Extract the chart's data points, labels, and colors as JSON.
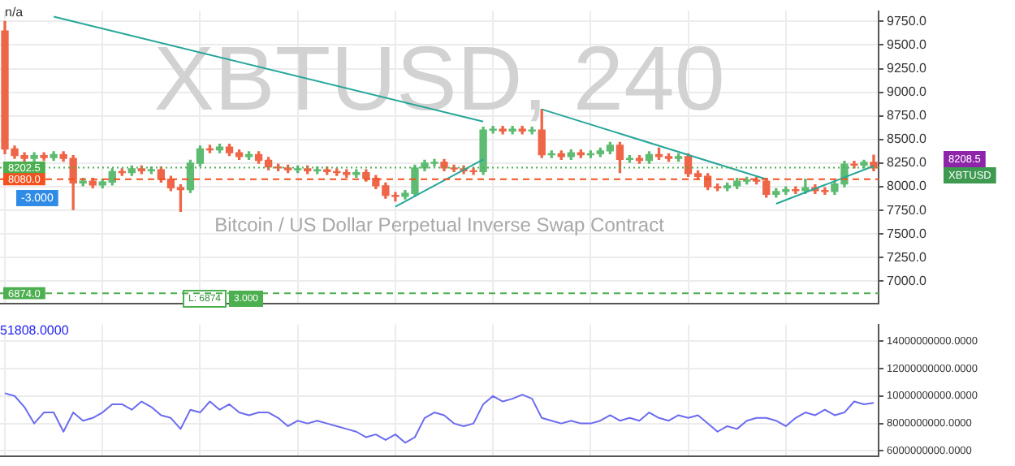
{
  "chart_data": [
    {
      "type": "candlestick",
      "categories": [
        null,
        null,
        null,
        null,
        null,
        null,
        null,
        null,
        null,
        null,
        null,
        null,
        null,
        null,
        null,
        null,
        null,
        null,
        null,
        null,
        null,
        null,
        null,
        null,
        null,
        null,
        null,
        null,
        null,
        null,
        null,
        null,
        null,
        null,
        null,
        null,
        null,
        null,
        null,
        null,
        null,
        null,
        null,
        null,
        null,
        null,
        null,
        null,
        null,
        null,
        null,
        null,
        null,
        null,
        null,
        null,
        null,
        null,
        null,
        null,
        null,
        null,
        null,
        null,
        null,
        null,
        null,
        null,
        null,
        null,
        null,
        null,
        null,
        null,
        null,
        null,
        null,
        null,
        null,
        null,
        null,
        null,
        null,
        null,
        null,
        null,
        null,
        null,
        null,
        null
      ],
      "ohlc": [
        [
          9650,
          9750,
          8350,
          8400
        ],
        [
          8400,
          8430,
          8300,
          8330
        ],
        [
          8330,
          8360,
          8270,
          8300
        ],
        [
          8300,
          8360,
          8270,
          8330
        ],
        [
          8330,
          8360,
          8280,
          8310
        ],
        [
          8310,
          8370,
          8280,
          8340
        ],
        [
          8340,
          8370,
          8270,
          8300
        ],
        [
          8300,
          8330,
          7760,
          8040
        ],
        [
          8040,
          8090,
          8010,
          8060
        ],
        [
          8060,
          8090,
          7990,
          8020
        ],
        [
          8020,
          8080,
          7990,
          8050
        ],
        [
          8050,
          8190,
          8020,
          8160
        ],
        [
          8160,
          8190,
          8120,
          8150
        ],
        [
          8150,
          8220,
          8120,
          8190
        ],
        [
          8190,
          8220,
          8140,
          8170
        ],
        [
          8170,
          8210,
          8140,
          8180
        ],
        [
          8180,
          8210,
          8050,
          8080
        ],
        [
          8080,
          8110,
          7960,
          7990
        ],
        [
          7990,
          8020,
          7740,
          7970
        ],
        [
          7970,
          8280,
          7940,
          8250
        ],
        [
          8250,
          8430,
          8220,
          8400
        ],
        [
          8400,
          8440,
          8360,
          8390
        ],
        [
          8390,
          8450,
          8360,
          8420
        ],
        [
          8420,
          8450,
          8330,
          8360
        ],
        [
          8360,
          8390,
          8290,
          8320
        ],
        [
          8320,
          8370,
          8290,
          8340
        ],
        [
          8340,
          8370,
          8250,
          8280
        ],
        [
          8280,
          8310,
          8180,
          8210
        ],
        [
          8210,
          8240,
          8170,
          8200
        ],
        [
          8200,
          8230,
          8150,
          8180
        ],
        [
          8180,
          8220,
          8150,
          8190
        ],
        [
          8190,
          8220,
          8140,
          8170
        ],
        [
          8170,
          8210,
          8140,
          8180
        ],
        [
          8180,
          8210,
          8130,
          8160
        ],
        [
          8160,
          8190,
          8120,
          8150
        ],
        [
          8150,
          8180,
          8100,
          8130
        ],
        [
          8130,
          8180,
          8100,
          8150
        ],
        [
          8150,
          8180,
          8060,
          8090
        ],
        [
          8090,
          8120,
          7980,
          8010
        ],
        [
          8010,
          8040,
          7880,
          7910
        ],
        [
          7910,
          7940,
          7850,
          7900
        ],
        [
          7900,
          7960,
          7870,
          7930
        ],
        [
          7930,
          8230,
          7900,
          8200
        ],
        [
          8200,
          8280,
          8170,
          8250
        ],
        [
          8250,
          8290,
          8220,
          8260
        ],
        [
          8260,
          8290,
          8170,
          8200
        ],
        [
          8200,
          8230,
          8160,
          8190
        ],
        [
          8190,
          8220,
          8140,
          8170
        ],
        [
          8170,
          8200,
          8130,
          8160
        ],
        [
          8160,
          8630,
          8130,
          8600
        ],
        [
          8600,
          8640,
          8570,
          8610
        ],
        [
          8610,
          8640,
          8560,
          8590
        ],
        [
          8590,
          8640,
          8560,
          8610
        ],
        [
          8610,
          8640,
          8560,
          8590
        ],
        [
          8590,
          8630,
          8560,
          8600
        ],
        [
          8600,
          8820,
          8310,
          8340
        ],
        [
          8340,
          8380,
          8310,
          8350
        ],
        [
          8350,
          8380,
          8290,
          8320
        ],
        [
          8320,
          8390,
          8290,
          8360
        ],
        [
          8360,
          8390,
          8310,
          8340
        ],
        [
          8340,
          8380,
          8310,
          8350
        ],
        [
          8350,
          8410,
          8320,
          8380
        ],
        [
          8380,
          8470,
          8350,
          8440
        ],
        [
          8440,
          8470,
          8150,
          8290
        ],
        [
          8290,
          8330,
          8260,
          8300
        ],
        [
          8300,
          8330,
          8250,
          8280
        ],
        [
          8280,
          8370,
          8250,
          8340
        ],
        [
          8340,
          8410,
          8290,
          8320
        ],
        [
          8320,
          8350,
          8270,
          8300
        ],
        [
          8300,
          8350,
          8270,
          8320
        ],
        [
          8320,
          8350,
          8110,
          8140
        ],
        [
          8140,
          8170,
          8080,
          8110
        ],
        [
          8110,
          8140,
          7970,
          8000
        ],
        [
          8000,
          8030,
          7960,
          7990
        ],
        [
          7990,
          8040,
          7960,
          8010
        ],
        [
          8010,
          8090,
          7980,
          8060
        ],
        [
          8060,
          8100,
          8030,
          8070
        ],
        [
          8070,
          8100,
          8030,
          8060
        ],
        [
          8060,
          8090,
          7890,
          7920
        ],
        [
          7920,
          7980,
          7890,
          7950
        ],
        [
          7950,
          8000,
          7920,
          7970
        ],
        [
          7970,
          8000,
          7930,
          7960
        ],
        [
          7960,
          8080,
          7930,
          7990
        ],
        [
          7990,
          8020,
          7930,
          7960
        ],
        [
          7960,
          7990,
          7920,
          7950
        ],
        [
          7950,
          8060,
          7920,
          8030
        ],
        [
          8030,
          8270,
          8000,
          8240
        ],
        [
          8240,
          8270,
          8200,
          8230
        ],
        [
          8230,
          8280,
          8200,
          8260
        ],
        [
          8260,
          8335,
          8170,
          8200
        ]
      ],
      "series": [
        {
          "type": "line",
          "color": "#26a69a",
          "values": [
            null,
            null,
            null,
            null,
            null,
            9800,
            null,
            null,
            null,
            null,
            null,
            null,
            null,
            null,
            null,
            null,
            null,
            null,
            null,
            null,
            null,
            null,
            null,
            null,
            null,
            null,
            null,
            null,
            null,
            null,
            null,
            null,
            null,
            null,
            null,
            null,
            null,
            null,
            null,
            null,
            null,
            null,
            null,
            null,
            null,
            null,
            null,
            null,
            null,
            8690,
            null,
            null,
            null,
            null,
            null,
            null,
            null,
            null,
            null,
            null,
            null,
            null,
            null,
            null,
            null,
            null,
            null,
            null,
            null,
            null,
            null,
            null,
            null,
            null,
            null,
            null,
            null,
            null,
            null,
            null,
            null,
            null,
            null,
            null,
            null,
            null,
            null,
            null,
            null,
            null
          ]
        },
        {
          "type": "line",
          "color": "#26a69a",
          "values": [
            null,
            null,
            null,
            null,
            null,
            null,
            null,
            null,
            null,
            null,
            null,
            null,
            null,
            null,
            null,
            null,
            null,
            null,
            null,
            null,
            null,
            null,
            null,
            null,
            null,
            null,
            null,
            null,
            null,
            null,
            null,
            null,
            null,
            null,
            null,
            null,
            null,
            null,
            null,
            null,
            7790,
            null,
            null,
            null,
            null,
            null,
            null,
            null,
            null,
            8290,
            null,
            null,
            null,
            null,
            null,
            null,
            null,
            null,
            null,
            null,
            null,
            null,
            null,
            null,
            null,
            null,
            null,
            null,
            null,
            null,
            null,
            null,
            null,
            null,
            null,
            null,
            null,
            null,
            null,
            null,
            null,
            null,
            null,
            null,
            null,
            null,
            null,
            null,
            null,
            null
          ]
        },
        {
          "type": "line",
          "color": "#26a69a",
          "values": [
            null,
            null,
            null,
            null,
            null,
            null,
            null,
            null,
            null,
            null,
            null,
            null,
            null,
            null,
            null,
            null,
            null,
            null,
            null,
            null,
            null,
            null,
            null,
            null,
            null,
            null,
            null,
            null,
            null,
            null,
            null,
            null,
            null,
            null,
            null,
            null,
            null,
            null,
            null,
            null,
            null,
            null,
            null,
            null,
            null,
            null,
            null,
            null,
            null,
            null,
            null,
            null,
            null,
            null,
            null,
            8820,
            null,
            null,
            null,
            null,
            null,
            null,
            null,
            null,
            null,
            null,
            null,
            null,
            null,
            null,
            null,
            null,
            null,
            null,
            null,
            null,
            null,
            null,
            8080,
            null,
            null,
            null,
            null,
            null,
            null,
            null,
            null,
            null,
            null,
            null
          ]
        },
        {
          "type": "line",
          "color": "#26a69a",
          "values": [
            null,
            null,
            null,
            null,
            null,
            null,
            null,
            null,
            null,
            null,
            null,
            null,
            null,
            null,
            null,
            null,
            null,
            null,
            null,
            null,
            null,
            null,
            null,
            null,
            null,
            null,
            null,
            null,
            null,
            null,
            null,
            null,
            null,
            null,
            null,
            null,
            null,
            null,
            null,
            null,
            null,
            null,
            null,
            null,
            null,
            null,
            null,
            null,
            null,
            null,
            null,
            null,
            null,
            null,
            null,
            null,
            null,
            null,
            null,
            null,
            null,
            null,
            null,
            null,
            null,
            null,
            null,
            null,
            null,
            null,
            null,
            null,
            null,
            null,
            null,
            null,
            null,
            null,
            null,
            7820,
            null,
            null,
            null,
            null,
            null,
            null,
            null,
            null,
            null,
            8220
          ]
        }
      ],
      "ylim": [
        6760,
        9860
      ],
      "yticks": [
        {
          "value": 7000,
          "label": "7000.0"
        },
        {
          "value": 7250,
          "label": "7250.0"
        },
        {
          "value": 7500,
          "label": "7500.0"
        },
        {
          "value": 7750,
          "label": "7750.0"
        },
        {
          "value": 8000,
          "label": "8000.0"
        },
        {
          "value": 8250,
          "label": "8250.0"
        },
        {
          "value": 8500,
          "label": "8500.0"
        },
        {
          "value": 8750,
          "label": "8750.0"
        },
        {
          "value": 9000,
          "label": "9000.0"
        },
        {
          "value": 9250,
          "label": "9250.0"
        },
        {
          "value": 9500,
          "label": "9500.0"
        },
        {
          "value": 9750,
          "label": "9750.0"
        }
      ],
      "ref_lines": [
        {
          "axis": "y",
          "value": 8202.5,
          "label": "8202.5",
          "color": "#4caf50",
          "line_style": "dotted"
        },
        {
          "axis": "y",
          "value": 8080,
          "label": "8080.0",
          "color": "#f4511e",
          "line_style": "dashed"
        },
        {
          "axis": "y",
          "value": 6874,
          "label": "6874.0",
          "color": "#4caf50",
          "line_style": "dashed"
        }
      ],
      "annotations": [
        "XBTUSD, 240",
        "Bitcoin / US Dollar Perpetual Inverse Swap Contract",
        "n/a",
        "-3.000",
        "L: 6874",
        "3.000",
        "8208.5",
        "XBTUSD"
      ],
      "grid": true,
      "tick_labels": "y"
    },
    {
      "type": "line",
      "categories": [
        null,
        null,
        null,
        null,
        null,
        null,
        null,
        null,
        null,
        null,
        null,
        null,
        null,
        null,
        null,
        null,
        null,
        null,
        null,
        null,
        null,
        null,
        null,
        null,
        null,
        null,
        null,
        null,
        null,
        null,
        null,
        null,
        null,
        null,
        null,
        null,
        null,
        null,
        null,
        null,
        null,
        null,
        null,
        null,
        null,
        null,
        null,
        null,
        null,
        null,
        null,
        null,
        null,
        null,
        null,
        null,
        null,
        null,
        null,
        null,
        null,
        null,
        null,
        null,
        null,
        null,
        null,
        null,
        null,
        null,
        null,
        null,
        null,
        null,
        null,
        null,
        null,
        null,
        null,
        null,
        null,
        null,
        null,
        null,
        null,
        null,
        null,
        null,
        null,
        null
      ],
      "series": [
        {
          "color": "#6b6bf0",
          "values": [
            10200000000,
            10000000000,
            9200000000,
            8000000000,
            8800000000,
            8800000000,
            7400000000,
            8800000000,
            8200000000,
            8400000000,
            8800000000,
            9400000000,
            9400000000,
            9000000000,
            9600000000,
            9200000000,
            8600000000,
            8400000000,
            7600000000,
            9000000000,
            8800000000,
            9600000000,
            9000000000,
            9400000000,
            8800000000,
            8600000000,
            8800000000,
            8800000000,
            8400000000,
            7800000000,
            8200000000,
            8000000000,
            8200000000,
            8000000000,
            7800000000,
            7600000000,
            7400000000,
            7000000000,
            7200000000,
            6800000000,
            7200000000,
            6600000000,
            7000000000,
            8400000000,
            8800000000,
            8600000000,
            8000000000,
            7800000000,
            8000000000,
            9400000000,
            10000000000,
            9600000000,
            9800000000,
            10100000000,
            9800000000,
            8400000000,
            8200000000,
            8000000000,
            8200000000,
            8000000000,
            8000000000,
            8200000000,
            8600000000,
            8200000000,
            8400000000,
            8200000000,
            8800000000,
            8400000000,
            8200000000,
            8600000000,
            8400000000,
            8600000000,
            8000000000,
            7400000000,
            7800000000,
            7600000000,
            8200000000,
            8400000000,
            8400000000,
            8200000000,
            7800000000,
            8400000000,
            8800000000,
            8600000000,
            9000000000,
            8600000000,
            8800000000,
            9600000000,
            9400000000,
            9500000000
          ]
        }
      ],
      "ylim": [
        5600000000,
        15200000000
      ],
      "yticks": [
        {
          "value": 6000000000,
          "label": "6000000000.0000"
        },
        {
          "value": 8000000000,
          "label": "8000000000.0000"
        },
        {
          "value": 10000000000,
          "label": "10000000000.0000"
        },
        {
          "value": 12000000000,
          "label": "12000000000.0000"
        },
        {
          "value": 14000000000,
          "label": "14000000000.0000"
        }
      ],
      "annotations": [
        "51808.0000"
      ],
      "grid": true,
      "tick_labels": "y"
    }
  ]
}
